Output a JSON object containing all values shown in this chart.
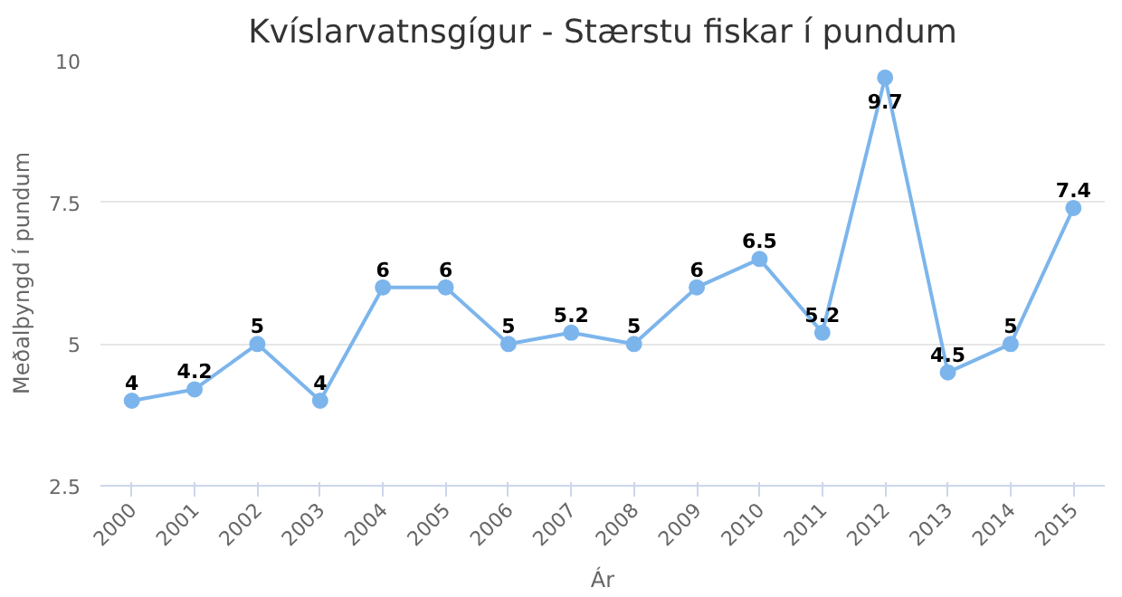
{
  "chart_data": {
    "type": "line",
    "title": "Kvíslarvatnsgígur - Stærstu fiskar í pundum",
    "xlabel": "Ár",
    "ylabel": "Meðalþyngd í pundum",
    "categories": [
      "2000",
      "2001",
      "2002",
      "2003",
      "2004",
      "2005",
      "2006",
      "2007",
      "2008",
      "2009",
      "2010",
      "2011",
      "2012",
      "2013",
      "2014",
      "2015"
    ],
    "series": [
      {
        "color": "#7cb5ec",
        "values": [
          4,
          4.2,
          5,
          4,
          6,
          6,
          5,
          5.2,
          5,
          6,
          6.5,
          5.2,
          9.7,
          4.5,
          5,
          7.4
        ]
      }
    ],
    "ylim": [
      2.5,
      10
    ],
    "yticks": [
      2.5,
      5,
      {
        "value": 7.5,
        "label": "7.5"
      },
      10
    ],
    "grid": "y",
    "marker": "circle",
    "line_style": "solid",
    "data_labels": true
  }
}
